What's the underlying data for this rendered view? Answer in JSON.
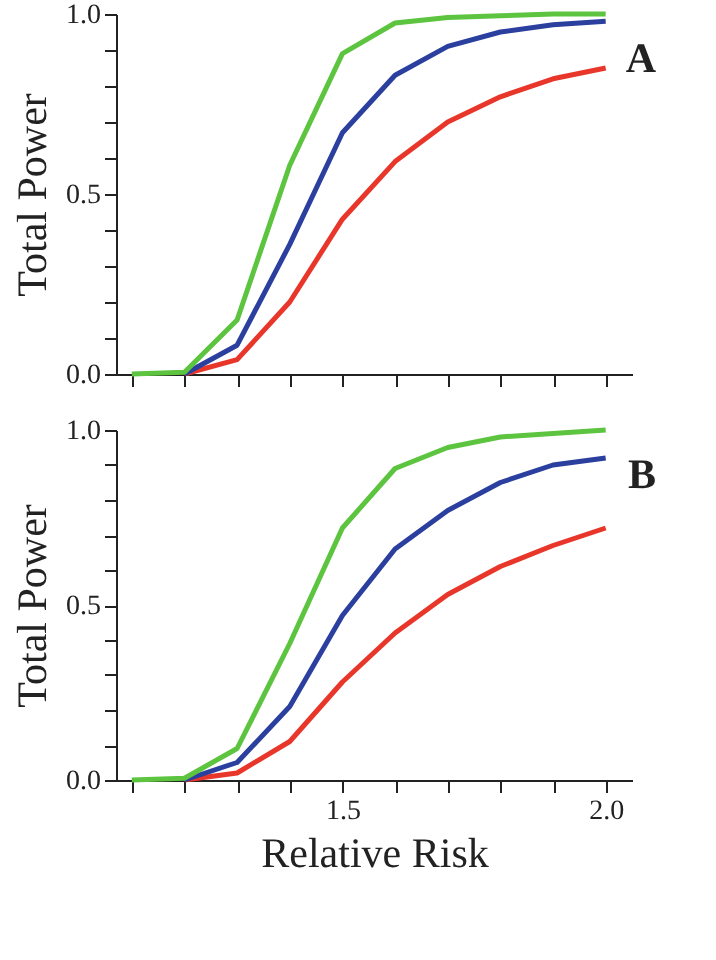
{
  "chart_data": [
    {
      "type": "line",
      "title": "A",
      "ylabel": "Total Power",
      "tick_labels": "y",
      "grid": false,
      "legend": false,
      "line_style": "solid",
      "marker": "none",
      "x": [
        1.1,
        1.2,
        1.3,
        1.4,
        1.5,
        1.6,
        1.7,
        1.8,
        1.9,
        2.0
      ],
      "xlim": [
        1.07,
        2.05
      ],
      "xticks": [
        {
          "value": 1.1,
          "label": null
        },
        {
          "value": 1.2,
          "label": null
        },
        {
          "value": 1.3,
          "label": null
        },
        {
          "value": 1.4,
          "label": null
        },
        {
          "value": 1.5,
          "label": null
        },
        {
          "value": 1.6,
          "label": null
        },
        {
          "value": 1.7,
          "label": null
        },
        {
          "value": 1.8,
          "label": null
        },
        {
          "value": 1.9,
          "label": null
        },
        {
          "value": 2.0,
          "label": null
        }
      ],
      "ylim": [
        0,
        1
      ],
      "yticks": [
        {
          "value": 0,
          "label": "0.0"
        },
        {
          "value": 0.1,
          "label": null
        },
        {
          "value": 0.2,
          "label": null
        },
        {
          "value": 0.3,
          "label": null
        },
        {
          "value": 0.4,
          "label": null
        },
        {
          "value": 0.5,
          "label": "0.5"
        },
        {
          "value": 0.6,
          "label": null
        },
        {
          "value": 0.7,
          "label": null
        },
        {
          "value": 0.8,
          "label": null
        },
        {
          "value": 0.9,
          "label": null
        },
        {
          "value": 1,
          "label": "1.0"
        }
      ],
      "series": [
        {
          "color": "#e8372a",
          "values": [
            null,
            0,
            0.04,
            0.2,
            0.43,
            0.59,
            0.7,
            0.77,
            0.82,
            0.85
          ]
        },
        {
          "color": "#2b3f9e",
          "values": [
            null,
            0,
            0.08,
            0.36,
            0.67,
            0.83,
            0.91,
            0.95,
            0.97,
            0.98
          ]
        },
        {
          "color": "#5cc43f",
          "values": [
            0,
            0.005,
            0.15,
            0.58,
            0.89,
            0.975,
            0.99,
            0.995,
            1.0,
            1.0
          ]
        }
      ]
    },
    {
      "type": "line",
      "title": "B",
      "ylabel": "Total Power",
      "xlabel": "Relative Risk",
      "grid": false,
      "legend": false,
      "line_style": "solid",
      "marker": "none",
      "x": [
        1.1,
        1.2,
        1.3,
        1.4,
        1.5,
        1.6,
        1.7,
        1.8,
        1.9,
        2.0
      ],
      "xlim": [
        1.07,
        2.05
      ],
      "xticks": [
        {
          "value": 1.1,
          "label": null
        },
        {
          "value": 1.2,
          "label": null
        },
        {
          "value": 1.3,
          "label": null
        },
        {
          "value": 1.4,
          "label": null
        },
        {
          "value": 1.5,
          "label": "1.5"
        },
        {
          "value": 1.6,
          "label": null
        },
        {
          "value": 1.7,
          "label": null
        },
        {
          "value": 1.8,
          "label": null
        },
        {
          "value": 1.9,
          "label": null
        },
        {
          "value": 2.0,
          "label": "2.0"
        }
      ],
      "ylim": [
        0,
        1
      ],
      "yticks": [
        {
          "value": 0,
          "label": "0.0"
        },
        {
          "value": 0.1,
          "label": null
        },
        {
          "value": 0.2,
          "label": null
        },
        {
          "value": 0.3,
          "label": null
        },
        {
          "value": 0.4,
          "label": null
        },
        {
          "value": 0.5,
          "label": "0.5"
        },
        {
          "value": 0.6,
          "label": null
        },
        {
          "value": 0.7,
          "label": null
        },
        {
          "value": 0.8,
          "label": null
        },
        {
          "value": 0.9,
          "label": null
        },
        {
          "value": 1,
          "label": "1.0"
        }
      ],
      "series": [
        {
          "color": "#e8372a",
          "values": [
            null,
            0,
            0.02,
            0.11,
            0.28,
            0.42,
            0.53,
            0.61,
            0.67,
            0.72
          ]
        },
        {
          "color": "#2b3f9e",
          "values": [
            null,
            0,
            0.05,
            0.21,
            0.47,
            0.66,
            0.77,
            0.85,
            0.9,
            0.92
          ]
        },
        {
          "color": "#5cc43f",
          "values": [
            0,
            0.005,
            0.09,
            0.39,
            0.72,
            0.89,
            0.95,
            0.98,
            0.99,
            1.0
          ]
        }
      ]
    }
  ]
}
